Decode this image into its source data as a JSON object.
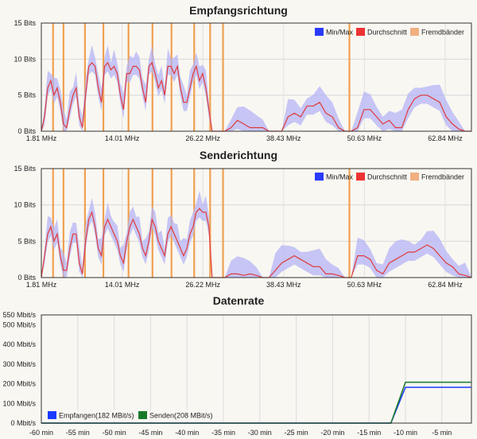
{
  "chart_data": [
    {
      "type": "area",
      "title": "Empfangsrichtung",
      "y_tick_labels": [
        "15 Bits",
        "10 Bits",
        "5 Bits",
        "0 Bits"
      ],
      "x_tick_labels": [
        "1.81 MHz",
        "14.01 MHz",
        "26.22 MHz",
        "38.43 MHz",
        "50.63 MHz",
        "62.84 MHz"
      ],
      "ylim": [
        0,
        15
      ],
      "xlim": [
        0,
        68
      ],
      "legend": {
        "position": "top-right",
        "items": [
          "Min/Max",
          "Durchschnitt",
          "Fremdbänder"
        ]
      },
      "colors": {
        "minmax": "#8080ff",
        "average": "#e03a3a",
        "foreign": "#f0a050"
      },
      "foreign_bands_mhz": [
        1.9,
        3.6,
        7.1,
        10.1,
        14.2,
        18.1,
        21.2,
        24.9,
        27.5,
        29.6,
        50.2
      ],
      "average_profile": [
        [
          0,
          0
        ],
        [
          0.5,
          2
        ],
        [
          1,
          6
        ],
        [
          1.5,
          7
        ],
        [
          2,
          5
        ],
        [
          2.5,
          6
        ],
        [
          3,
          4
        ],
        [
          3.5,
          1
        ],
        [
          4,
          0.5
        ],
        [
          4.5,
          3
        ],
        [
          5,
          5
        ],
        [
          5.5,
          6
        ],
        [
          6,
          2
        ],
        [
          6.5,
          0.5
        ],
        [
          7,
          5
        ],
        [
          7.5,
          9
        ],
        [
          8,
          9.5
        ],
        [
          8.5,
          9
        ],
        [
          9,
          6
        ],
        [
          9.5,
          4
        ],
        [
          10,
          9
        ],
        [
          10.5,
          9.5
        ],
        [
          11,
          8.5
        ],
        [
          11.5,
          9
        ],
        [
          12,
          8
        ],
        [
          12.5,
          5
        ],
        [
          13,
          3
        ],
        [
          13.5,
          8
        ],
        [
          14,
          8
        ],
        [
          14.5,
          9
        ],
        [
          15,
          9
        ],
        [
          15.5,
          8.5
        ],
        [
          16,
          6
        ],
        [
          16.5,
          4
        ],
        [
          17,
          9
        ],
        [
          17.5,
          9.5
        ],
        [
          18,
          8
        ],
        [
          18.5,
          6
        ],
        [
          19,
          7
        ],
        [
          19.5,
          5
        ],
        [
          20,
          9
        ],
        [
          20.5,
          9
        ],
        [
          21,
          8
        ],
        [
          21.5,
          9
        ],
        [
          22,
          6
        ],
        [
          22.5,
          4
        ],
        [
          23,
          4
        ],
        [
          23.5,
          6
        ],
        [
          24,
          8
        ],
        [
          24.5,
          9
        ],
        [
          25,
          7
        ],
        [
          25.5,
          8
        ],
        [
          26,
          6
        ],
        [
          26.5,
          3
        ],
        [
          27,
          0
        ],
        [
          28,
          0
        ],
        [
          29,
          0
        ],
        [
          30,
          0.5
        ],
        [
          31,
          1.5
        ],
        [
          32,
          1
        ],
        [
          33,
          0.5
        ],
        [
          34,
          0.5
        ],
        [
          35,
          0.5
        ],
        [
          36,
          0
        ],
        [
          37,
          0
        ],
        [
          38,
          0
        ],
        [
          39,
          2
        ],
        [
          40,
          2.5
        ],
        [
          41,
          2
        ],
        [
          42,
          3.5
        ],
        [
          43,
          3.5
        ],
        [
          44,
          4
        ],
        [
          45,
          2.5
        ],
        [
          46,
          2
        ],
        [
          47,
          0.5
        ],
        [
          48,
          0
        ],
        [
          49,
          0
        ],
        [
          50,
          0.5
        ],
        [
          51,
          3
        ],
        [
          52,
          3
        ],
        [
          53,
          2
        ],
        [
          54,
          1
        ],
        [
          55,
          1.5
        ],
        [
          56,
          0.5
        ],
        [
          57,
          0.5
        ],
        [
          58,
          3
        ],
        [
          59,
          4.5
        ],
        [
          60,
          5
        ],
        [
          61,
          5
        ],
        [
          62,
          4.5
        ],
        [
          63,
          4
        ],
        [
          64,
          2
        ],
        [
          65,
          1
        ],
        [
          66,
          0.3
        ],
        [
          67,
          0
        ],
        [
          68,
          0
        ]
      ]
    },
    {
      "type": "area",
      "title": "Senderichtung",
      "y_tick_labels": [
        "15 Bits",
        "10 Bits",
        "5 Bits",
        "0 Bits"
      ],
      "x_tick_labels": [
        "1.81 MHz",
        "14.01 MHz",
        "26.22 MHz",
        "38.43 MHz",
        "50.63 MHz",
        "62.84 MHz"
      ],
      "ylim": [
        0,
        15
      ],
      "xlim": [
        0,
        68
      ],
      "legend": {
        "position": "top-right",
        "items": [
          "Min/Max",
          "Durchschnitt",
          "Fremdbänder"
        ]
      },
      "colors": {
        "minmax": "#8080ff",
        "average": "#e03a3a",
        "foreign": "#f0a050"
      },
      "foreign_bands_mhz": [
        1.9,
        3.6,
        7.1,
        10.1,
        14.2,
        18.1,
        21.2,
        24.9,
        27.5,
        29.6,
        50.2
      ],
      "average_profile": [
        [
          0,
          0
        ],
        [
          0.5,
          3
        ],
        [
          1,
          6
        ],
        [
          1.5,
          7
        ],
        [
          2,
          5
        ],
        [
          2.5,
          6
        ],
        [
          3,
          3
        ],
        [
          3.5,
          1
        ],
        [
          4,
          1
        ],
        [
          4.5,
          4
        ],
        [
          5,
          6
        ],
        [
          5.5,
          6
        ],
        [
          6,
          2
        ],
        [
          6.5,
          0.5
        ],
        [
          7,
          5
        ],
        [
          7.5,
          8
        ],
        [
          8,
          9
        ],
        [
          8.5,
          7
        ],
        [
          9,
          4
        ],
        [
          9.5,
          3
        ],
        [
          10,
          7
        ],
        [
          10.5,
          8
        ],
        [
          11,
          7
        ],
        [
          11.5,
          6
        ],
        [
          12,
          5
        ],
        [
          12.5,
          3
        ],
        [
          13,
          2
        ],
        [
          13.5,
          5
        ],
        [
          14,
          7
        ],
        [
          14.5,
          8
        ],
        [
          15,
          7
        ],
        [
          15.5,
          6
        ],
        [
          16,
          4
        ],
        [
          16.5,
          3
        ],
        [
          17,
          5
        ],
        [
          17.5,
          8
        ],
        [
          18,
          7
        ],
        [
          18.5,
          5
        ],
        [
          19,
          4
        ],
        [
          19.5,
          3
        ],
        [
          20,
          6
        ],
        [
          20.5,
          7
        ],
        [
          21,
          6
        ],
        [
          21.5,
          5
        ],
        [
          22,
          4
        ],
        [
          22.5,
          3
        ],
        [
          23,
          4
        ],
        [
          23.5,
          6
        ],
        [
          24,
          7
        ],
        [
          24.5,
          9
        ],
        [
          25,
          9.5
        ],
        [
          25.5,
          9
        ],
        [
          26,
          9
        ],
        [
          26.5,
          7
        ],
        [
          27,
          0
        ],
        [
          28,
          0
        ],
        [
          29,
          0
        ],
        [
          30,
          0.5
        ],
        [
          31,
          0.5
        ],
        [
          32,
          0.3
        ],
        [
          33,
          0.5
        ],
        [
          34,
          0.3
        ],
        [
          35,
          0
        ],
        [
          36,
          0
        ],
        [
          37,
          1
        ],
        [
          38,
          2
        ],
        [
          39,
          2.5
        ],
        [
          40,
          3
        ],
        [
          41,
          2.5
        ],
        [
          42,
          2
        ],
        [
          43,
          1.5
        ],
        [
          44,
          1.5
        ],
        [
          45,
          0.5
        ],
        [
          46,
          0.5
        ],
        [
          47,
          0.3
        ],
        [
          48,
          0
        ],
        [
          49,
          0
        ],
        [
          50,
          3
        ],
        [
          51,
          3
        ],
        [
          52,
          2.5
        ],
        [
          53,
          1
        ],
        [
          54,
          0.5
        ],
        [
          55,
          2
        ],
        [
          56,
          2.5
        ],
        [
          57,
          3
        ],
        [
          58,
          3.5
        ],
        [
          59,
          3.5
        ],
        [
          60,
          4
        ],
        [
          61,
          4.5
        ],
        [
          62,
          4
        ],
        [
          63,
          3
        ],
        [
          64,
          2
        ],
        [
          65,
          1.5
        ],
        [
          66,
          0.5
        ],
        [
          67,
          0.3
        ],
        [
          68,
          0
        ]
      ]
    },
    {
      "type": "line",
      "title": "Datenrate",
      "y_tick_labels": [
        "550 Mbit/s",
        "500 Mbit/s",
        "400 Mbit/s",
        "300 Mbit/s",
        "200 Mbit/s",
        "100 Mbit/s",
        "0 Mbit/s"
      ],
      "x_tick_labels": [
        "-60 min",
        "-55 min",
        "-50 min",
        "-45 min",
        "-40 min",
        "-35 min",
        "-30 min",
        "-25 min",
        "-20 min",
        "-15 min",
        "-10 min",
        "-5 min"
      ],
      "ylim": [
        0,
        550
      ],
      "xlim": [
        -60,
        0
      ],
      "legend": {
        "position": "bottom-left"
      },
      "series": [
        {
          "name": "Empfangen(182 MBit/s)",
          "color": "#1a3aff",
          "x": [
            -60,
            -12,
            -10,
            -1
          ],
          "y": [
            0,
            0,
            182,
            182
          ]
        },
        {
          "name": "Senden(208 MBit/s)",
          "color": "#1a7a2a",
          "x": [
            -60,
            -12,
            -10,
            -1
          ],
          "y": [
            0,
            0,
            208,
            208
          ]
        }
      ]
    }
  ]
}
